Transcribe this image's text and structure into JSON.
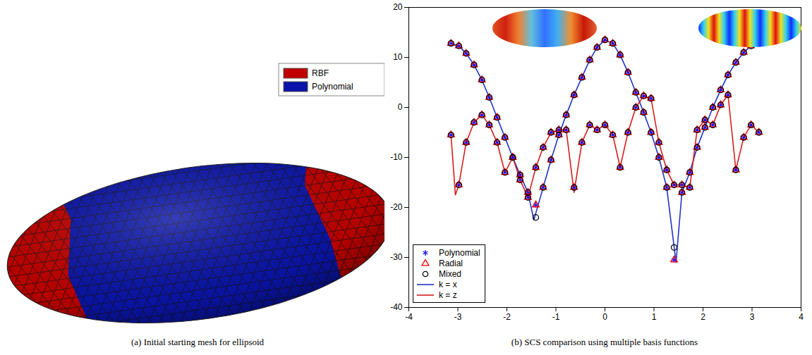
{
  "panel_a": {
    "caption": "(a) Initial starting mesh for ellipsoid",
    "legend": [
      {
        "name": "RBF",
        "color": "#c00000"
      },
      {
        "name": "Polynomial",
        "color": "#0a14a8"
      }
    ]
  },
  "chart_data": {
    "type": "line",
    "caption": "(b) SCS comparison using multiple basis functions",
    "xlim": [
      -4,
      4
    ],
    "xticks": [
      -4,
      -3,
      -2,
      -1,
      0,
      1,
      2,
      3,
      4
    ],
    "ylim": [
      -40,
      20
    ],
    "yticks": [
      -40,
      -30,
      -20,
      -10,
      0,
      10,
      20
    ],
    "legend": "bottom-left",
    "series": [
      {
        "name": "Polynomial",
        "type": "scatter",
        "marker": "asterisk",
        "color": "#1010ff",
        "x": [
          -3.14,
          -2.98,
          -2.83,
          -2.67,
          -2.51,
          -2.36,
          -2.2,
          -2.04,
          -1.88,
          -1.73,
          -1.57,
          -1.41,
          -1.26,
          -1.1,
          -0.94,
          -0.79,
          -0.63,
          -0.47,
          -0.31,
          -0.16,
          0,
          0.16,
          0.31,
          0.47,
          0.63,
          0.79,
          0.94,
          1.1,
          1.26,
          1.41,
          1.57,
          1.73,
          1.88,
          2.04,
          2.2,
          2.36,
          2.51,
          2.67,
          2.83,
          2.98,
          3.14,
          -3.14,
          -2.98,
          -2.83,
          -2.67,
          -2.51,
          -2.36,
          -2.2,
          -2.04,
          -1.88,
          -1.73,
          -1.57,
          -1.41,
          -1.26,
          -1.1,
          -0.94,
          -0.79,
          -0.63,
          -0.47,
          -0.31,
          -0.16,
          0,
          0.16,
          0.31,
          0.47,
          0.63,
          0.79,
          0.94,
          1.1,
          1.26,
          1.41,
          1.57,
          1.73,
          1.88,
          2.04,
          2.2,
          2.36,
          2.51,
          2.67,
          2.83,
          2.98,
          3.14
        ],
        "values": [
          12.8,
          12.3,
          10.8,
          8.5,
          5.5,
          2,
          -2,
          -6,
          -10,
          -13.5,
          -17,
          -19.5,
          -16,
          -10.5,
          -5.5,
          -1.5,
          2.5,
          6,
          9.5,
          12,
          13.5,
          12.8,
          10.5,
          7,
          3,
          -1,
          -5,
          -10,
          -16,
          -30.5,
          -17,
          -13,
          -8,
          -4,
          0,
          3.5,
          6.5,
          9,
          11,
          12.3,
          12.8,
          -5.5,
          -15.5,
          -7,
          -3,
          -1.5,
          -3.5,
          -7,
          -13,
          -10,
          -14.5,
          -18,
          -12,
          -8,
          -5,
          -4.5,
          -4.5,
          -16,
          -7,
          -3.5,
          -4.5,
          -3.5,
          -5.5,
          -12,
          -5,
          0,
          2.3,
          1.8,
          -7,
          -12.5,
          -15.5,
          -15.5,
          -16,
          -4.5,
          -2.5,
          -3.5,
          0.5,
          2.5,
          -12.5,
          -6,
          -3.5,
          -5
        ]
      },
      {
        "name": "Radial",
        "type": "scatter",
        "marker": "triangle",
        "color": "#ff0000",
        "x": [
          -3.14,
          -2.98,
          -2.83,
          -2.67,
          -2.51,
          -2.36,
          -2.2,
          -2.04,
          -1.88,
          -1.73,
          -1.57,
          -1.41,
          -1.26,
          -1.1,
          -0.94,
          -0.79,
          -0.63,
          -0.47,
          -0.31,
          -0.16,
          0,
          0.16,
          0.31,
          0.47,
          0.63,
          0.79,
          0.94,
          1.1,
          1.26,
          1.41,
          1.57,
          1.73,
          1.88,
          2.04,
          2.2,
          2.36,
          2.51,
          2.67,
          2.83,
          2.98,
          3.14,
          -3.14,
          -2.98,
          -2.83,
          -2.67,
          -2.51,
          -2.36,
          -2.2,
          -2.04,
          -1.88,
          -1.73,
          -1.57,
          -1.41,
          -1.26,
          -1.1,
          -0.94,
          -0.79,
          -0.63,
          -0.47,
          -0.31,
          -0.16,
          0,
          0.16,
          0.31,
          0.47,
          0.63,
          0.79,
          0.94,
          1.1,
          1.26,
          1.41,
          1.57,
          1.73,
          1.88,
          2.04,
          2.2,
          2.36,
          2.51,
          2.67,
          2.83,
          2.98,
          3.14
        ],
        "values": [
          12.8,
          12.3,
          10.8,
          8.5,
          5.5,
          2,
          -2,
          -6,
          -10,
          -13.5,
          -17,
          -19.5,
          -16,
          -10.5,
          -5.5,
          -1.5,
          2.5,
          6,
          9.5,
          12,
          13.5,
          12.8,
          10.5,
          7,
          3,
          -1,
          -5,
          -10,
          -16,
          -30.5,
          -17,
          -13,
          -8,
          -4,
          0,
          3.5,
          6.5,
          9,
          11,
          12.3,
          12.8,
          -5.5,
          -15.5,
          -7,
          -3,
          -1.5,
          -3.5,
          -7,
          -13,
          -10,
          -14.5,
          -18,
          -12,
          -8,
          -5,
          -4.5,
          -4.5,
          -16,
          -7,
          -3.5,
          -4.5,
          -3.5,
          -5.5,
          -12,
          -5,
          0,
          2.3,
          1.8,
          -7,
          -12.5,
          -15.5,
          -15.5,
          -16,
          -4.5,
          -2.5,
          -3.5,
          0.5,
          2.5,
          -12.5,
          -6,
          -3.5,
          -5
        ]
      },
      {
        "name": "Mixed",
        "type": "scatter",
        "marker": "circle",
        "color": "#000000",
        "x": [
          -3.14,
          -2.98,
          -2.83,
          -2.67,
          -2.51,
          -2.36,
          -2.2,
          -2.04,
          -1.88,
          -1.73,
          -1.57,
          -1.41,
          -1.26,
          -1.1,
          -0.94,
          -0.79,
          -0.63,
          -0.47,
          -0.31,
          -0.16,
          0,
          0.16,
          0.31,
          0.47,
          0.63,
          0.79,
          0.94,
          1.1,
          1.26,
          1.41,
          1.57,
          1.73,
          1.88,
          2.04,
          2.2,
          2.36,
          2.51,
          2.67,
          2.83,
          2.98,
          3.14,
          -3.14,
          -2.98,
          -2.83,
          -2.67,
          -2.51,
          -2.36,
          -2.2,
          -2.04,
          -1.88,
          -1.73,
          -1.57,
          -1.41,
          -1.26,
          -1.1,
          -0.94,
          -0.79,
          -0.63,
          -0.47,
          -0.31,
          -0.16,
          0,
          0.16,
          0.31,
          0.47,
          0.63,
          0.79,
          0.94,
          1.1,
          1.26,
          1.41,
          1.57,
          1.73,
          1.88,
          2.04,
          2.2,
          2.36,
          2.51,
          2.67,
          2.83,
          2.98,
          3.14
        ],
        "values": [
          12.8,
          12.3,
          10.8,
          8.5,
          5.5,
          2,
          -2,
          -6,
          -10,
          -13.5,
          -17,
          -22,
          -16,
          -10.5,
          -5.5,
          -1.5,
          2.5,
          6,
          9.5,
          12,
          13.5,
          12.8,
          10.5,
          7,
          3,
          -1,
          -5,
          -10,
          -16,
          -28,
          -17,
          -13,
          -8,
          -4,
          0,
          3.5,
          6.5,
          9,
          11,
          12.3,
          12.8,
          -5.5,
          -15.5,
          -7,
          -3,
          -1.5,
          -3.5,
          -7,
          -13,
          -10,
          -14.5,
          -18,
          -12,
          -8,
          -5,
          -4.5,
          -4.5,
          -16,
          -7,
          -3.5,
          -4.5,
          -3.5,
          -5.5,
          -12,
          -5,
          0,
          2.3,
          1.8,
          -7,
          -12.5,
          -15.5,
          -15.5,
          -16,
          -4.5,
          -2.5,
          -3.5,
          0.5,
          2.5,
          -12.5,
          -6,
          -3.5,
          -5
        ]
      },
      {
        "name": "k = x",
        "type": "line",
        "line_style": "solid",
        "color": "#2035c8",
        "x": [
          -3.14,
          -2.98,
          -2.83,
          -2.67,
          -2.51,
          -2.36,
          -2.2,
          -2.04,
          -1.88,
          -1.73,
          -1.57,
          -1.45,
          -1.26,
          -1.1,
          -0.94,
          -0.79,
          -0.63,
          -0.47,
          -0.31,
          -0.16,
          0,
          0.16,
          0.31,
          0.47,
          0.63,
          0.79,
          0.94,
          1.1,
          1.26,
          1.45,
          1.57,
          1.73,
          1.88,
          2.04,
          2.2,
          2.36,
          2.51,
          2.67,
          2.83,
          2.98,
          3.14
        ],
        "values": [
          12.8,
          12.3,
          10.8,
          8.5,
          5.5,
          2,
          -2,
          -6,
          -10,
          -13.5,
          -17,
          -22.5,
          -16,
          -10.5,
          -5.5,
          -1.5,
          2.5,
          6,
          9.5,
          12,
          13.5,
          12.8,
          10.5,
          7,
          3,
          -1,
          -5,
          -10,
          -16,
          -31,
          -17,
          -13,
          -8,
          -4,
          0,
          3.5,
          6.5,
          9,
          11,
          12.3,
          12.8
        ]
      },
      {
        "name": "k = z",
        "type": "line",
        "line_style": "solid",
        "color": "#d81e1e",
        "x": [
          -3.14,
          -3.05,
          -2.98,
          -2.83,
          -2.67,
          -2.51,
          -2.36,
          -2.2,
          -2.04,
          -1.88,
          -1.73,
          -1.57,
          -1.41,
          -1.26,
          -1.1,
          -0.94,
          -0.79,
          -0.63,
          -0.47,
          -0.31,
          -0.16,
          0,
          0.16,
          0.31,
          0.47,
          0.63,
          0.79,
          0.94,
          1.1,
          1.26,
          1.41,
          1.57,
          1.73,
          1.88,
          2.04,
          2.2,
          2.36,
          2.51,
          2.67,
          2.83,
          2.98,
          3.14
        ],
        "values": [
          -5.5,
          -17.5,
          -15.5,
          -7,
          -3,
          -1.5,
          -3.5,
          -7,
          -13,
          -10,
          -14.5,
          -18,
          -12,
          -8,
          -5,
          -4.5,
          -4.5,
          -17,
          -7,
          -3.5,
          -4.5,
          -3.5,
          -5.5,
          -12,
          -5,
          0,
          2.3,
          1.8,
          -7,
          -12.5,
          -15.5,
          -15.5,
          -16,
          -4.5,
          -2.5,
          -3.5,
          0.5,
          2.5,
          -12.5,
          -6,
          -3.5,
          -5
        ]
      }
    ]
  }
}
